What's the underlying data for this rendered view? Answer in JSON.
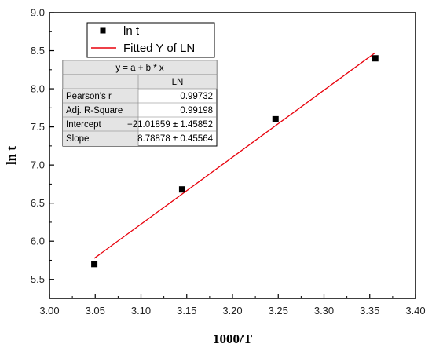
{
  "chart_data": {
    "type": "scatter",
    "xlabel": "1000/T",
    "ylabel": "ln t",
    "xlim": [
      3.0,
      3.4
    ],
    "ylim": [
      5.25,
      9.0
    ],
    "x_ticks": [
      "3.00",
      "3.05",
      "3.10",
      "3.15",
      "3.20",
      "3.25",
      "3.30",
      "3.35",
      "3.40"
    ],
    "y_ticks": [
      "5.5",
      "6.0",
      "6.5",
      "7.0",
      "7.5",
      "8.0",
      "8.5",
      "9.0"
    ],
    "legend_position": "top-left",
    "series": [
      {
        "name": "ln t",
        "kind": "points",
        "color": "#000000",
        "x": [
          3.049,
          3.145,
          3.247,
          3.356
        ],
        "y": [
          5.7,
          6.68,
          7.6,
          8.4
        ]
      },
      {
        "name": "Fitted Y of LN",
        "kind": "line",
        "color": "#e8000b",
        "x": [
          3.049,
          3.356
        ],
        "y": [
          5.776,
          8.474
        ]
      }
    ],
    "stats_table": {
      "equation": "y = a + b * x",
      "column_header": "LN",
      "rows": [
        {
          "label": "Pearson's r",
          "value": "0.99732"
        },
        {
          "label": "Adj. R-Square",
          "value": "0.99198"
        },
        {
          "label": "Intercept",
          "value": "−21.01859 ± 1.45852"
        },
        {
          "label": "Slope",
          "value": "8.78878 ± 0.45564"
        }
      ]
    }
  }
}
